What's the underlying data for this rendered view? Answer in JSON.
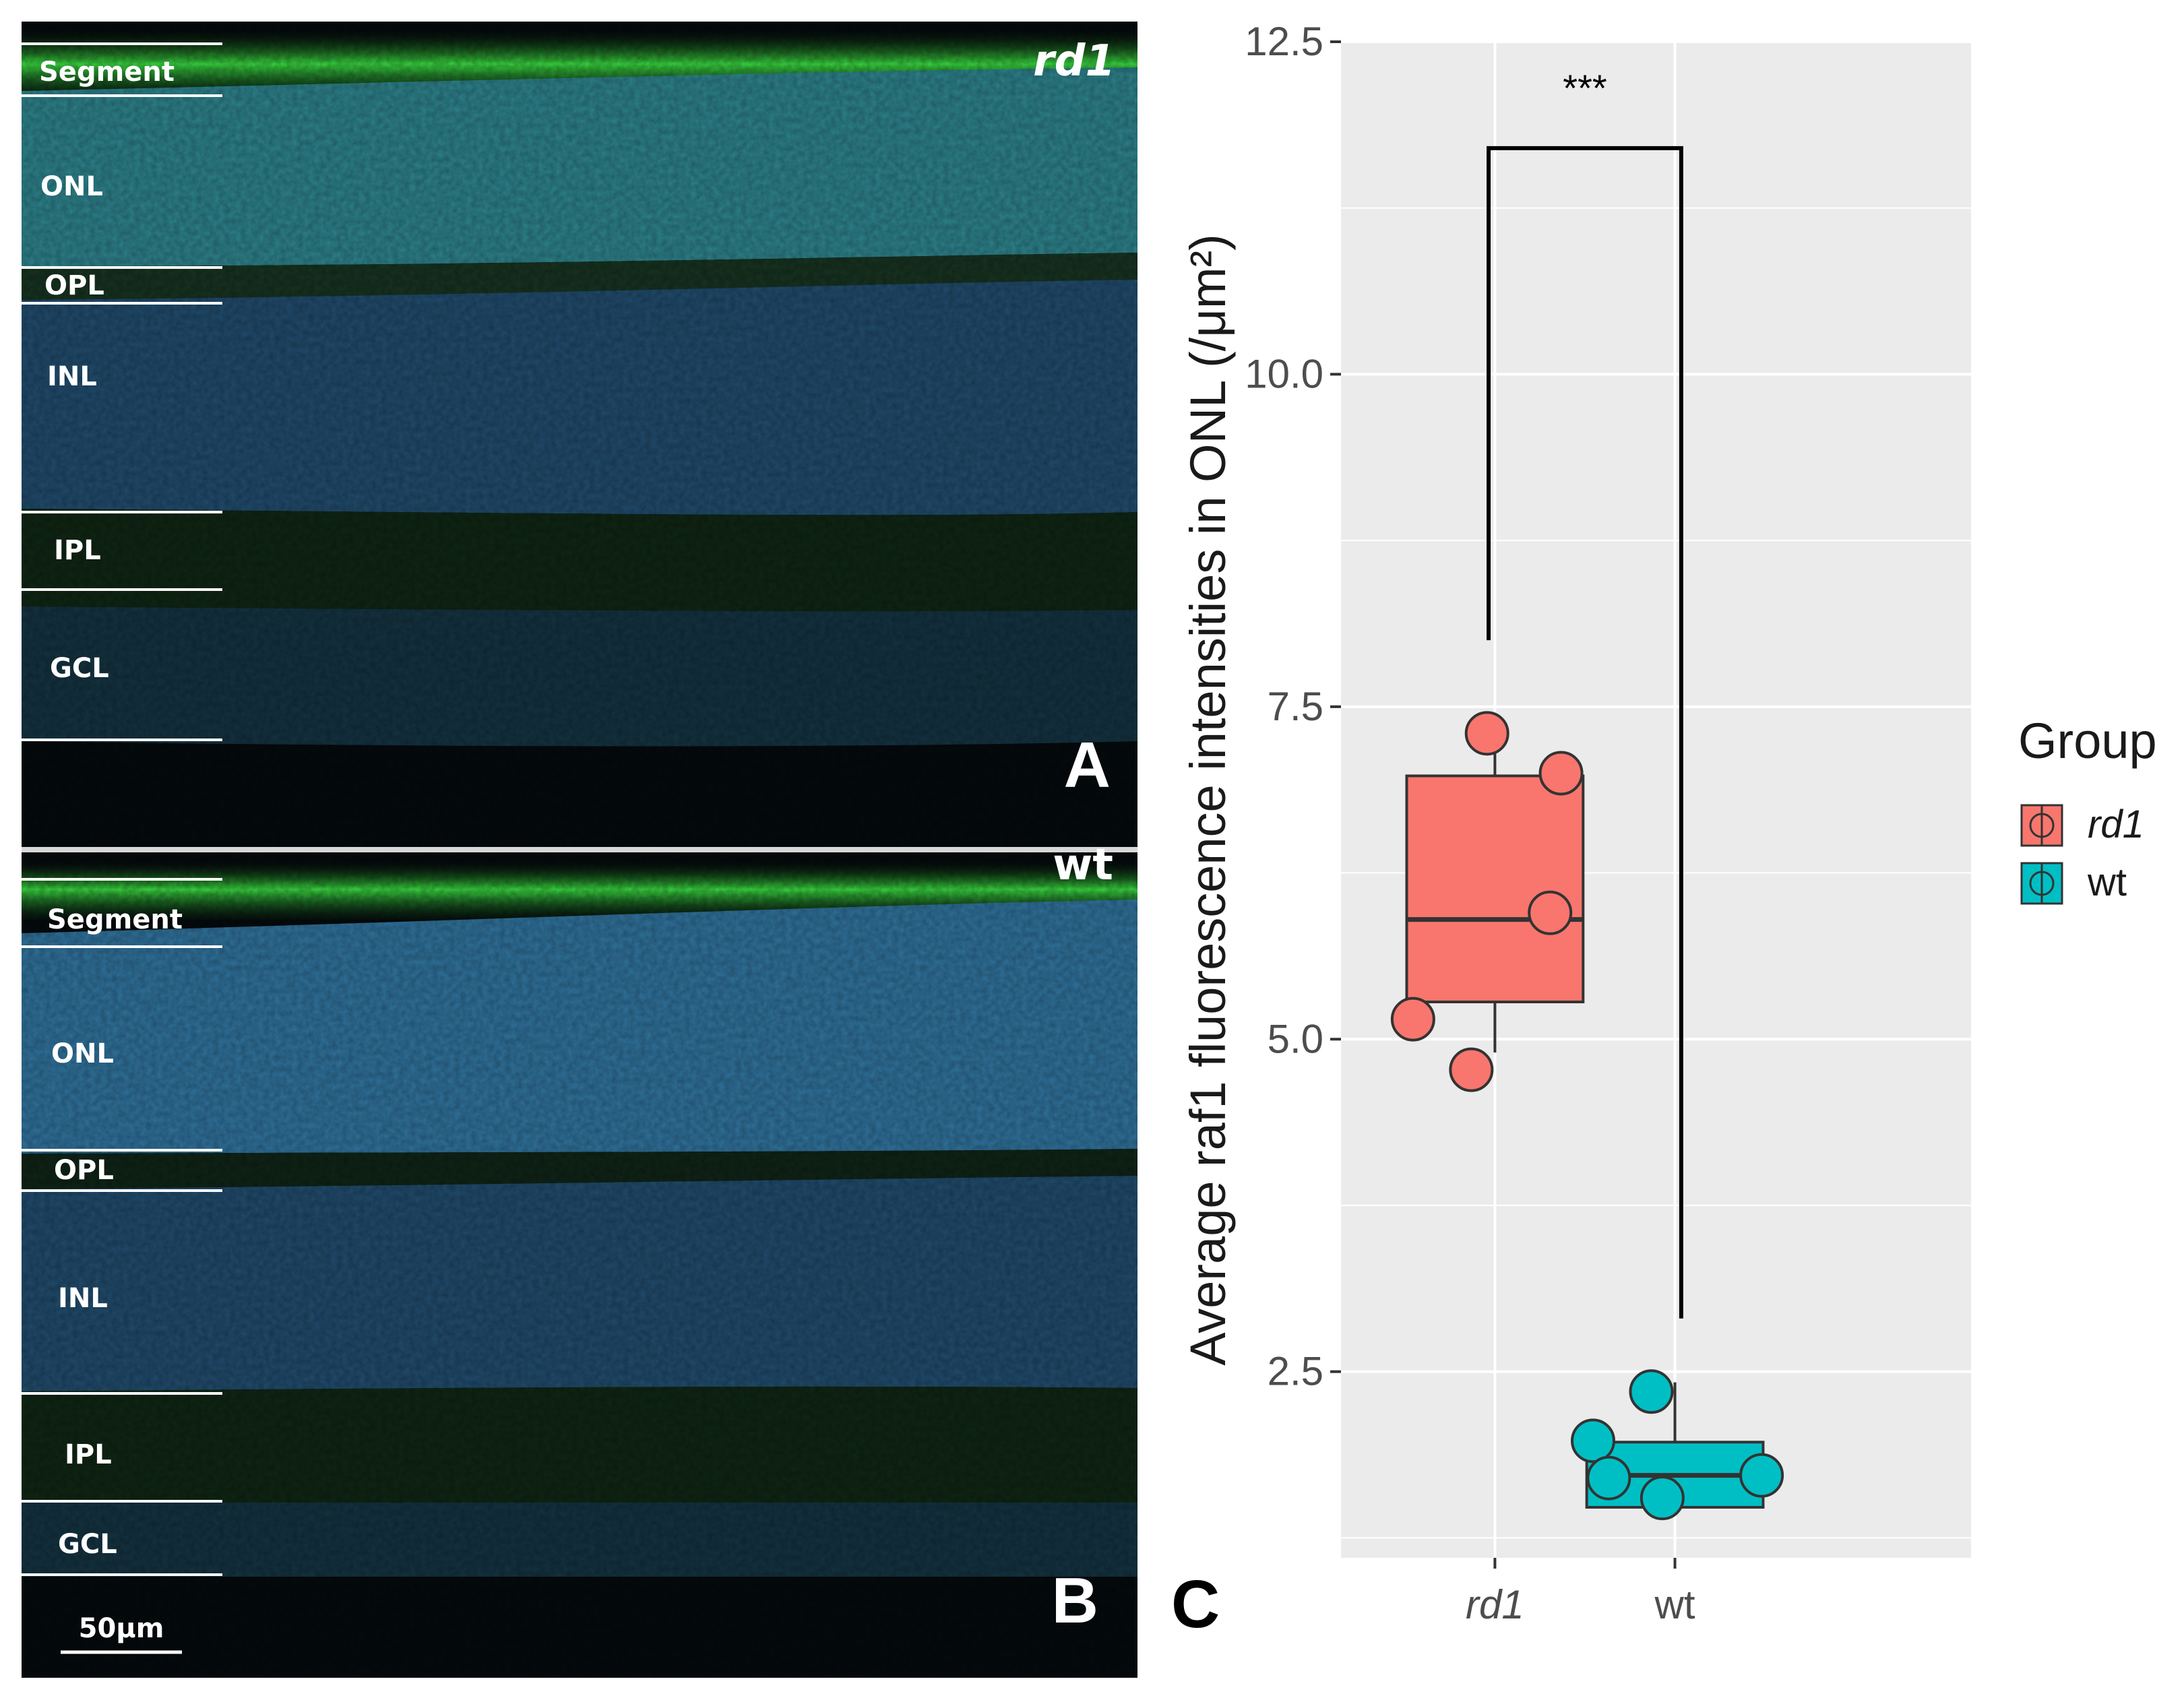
{
  "panels": {
    "A": {
      "letter": "A",
      "strain": "rd1",
      "layers": [
        "Segment",
        "ONL",
        "OPL",
        "INL",
        "IPL",
        "GCL"
      ]
    },
    "B": {
      "letter": "B",
      "strain": "wt",
      "layers": [
        "Segment",
        "ONL",
        "OPL",
        "INL",
        "IPL",
        "GCL"
      ],
      "scale_bar": "50μm"
    },
    "C": {
      "letter": "C"
    }
  },
  "colors": {
    "rd1": "#F8766D",
    "wt": "#00BFC4",
    "plot_bg": "#EBEBEB",
    "grid": "#FFFFFF",
    "nuclei": "#2a5f8a",
    "stain": "#3ee04a"
  },
  "chart_data": {
    "type": "box",
    "title": "",
    "ylabel": "Average raf1  fluorescence intensities in ONL  (/μm²)",
    "xlabel": "",
    "categories": [
      "rd1",
      "wt"
    ],
    "ylim": [
      1.1,
      12.5
    ],
    "yticks": [
      2.5,
      5.0,
      7.5,
      10.0,
      12.5
    ],
    "ytick_labels": [
      "2.5",
      "5.0",
      "7.5",
      "10.0",
      "12.5"
    ],
    "grid": true,
    "legend": {
      "title": "Group",
      "placement": "right",
      "entries": [
        "rd1",
        "wt"
      ]
    },
    "series": [
      {
        "name": "rd1",
        "color": "#F8766D",
        "box": {
          "min": 4.9,
          "q1": 5.28,
          "median": 5.9,
          "q3": 6.98,
          "max": 7.32
        },
        "points": [
          {
            "x": -0.05,
            "y": 7.3
          },
          {
            "x": 0.42,
            "y": 7.0
          },
          {
            "x": 0.35,
            "y": 5.95
          },
          {
            "x": -0.52,
            "y": 5.15
          },
          {
            "x": -0.15,
            "y": 4.77
          }
        ]
      },
      {
        "name": "wt",
        "color": "#00BFC4",
        "box": {
          "min": 1.48,
          "q1": 1.48,
          "median": 1.72,
          "q3": 1.97,
          "max": 2.42
        },
        "points": [
          {
            "x": -0.15,
            "y": 2.35
          },
          {
            "x": -0.52,
            "y": 1.98
          },
          {
            "x": -0.42,
            "y": 1.7
          },
          {
            "x": -0.08,
            "y": 1.55
          },
          {
            "x": 0.55,
            "y": 1.72
          }
        ]
      }
    ],
    "significance": {
      "label": "***",
      "y": 11.7,
      "left_y": 8.0,
      "right_y": 2.9
    }
  }
}
